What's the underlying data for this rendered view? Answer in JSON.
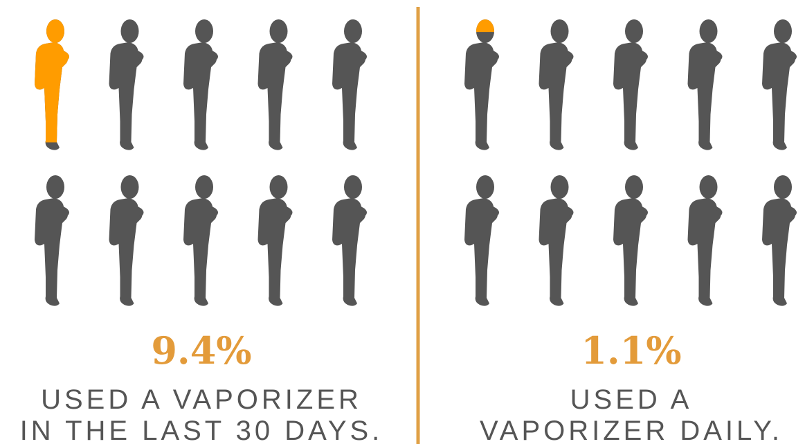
{
  "chart_data": [
    {
      "type": "pictogram",
      "values": [
        9.4
      ],
      "value_labels": [
        "9.4%"
      ],
      "caption": [
        "USED A VAPORIZER",
        "IN THE LAST 30 DAYS."
      ],
      "color": "#ff9c00",
      "base_color": "#555555"
    },
    {
      "type": "pictogram",
      "values": [
        1.1
      ],
      "value_labels": [
        "1.1%"
      ],
      "caption": [
        "USED A",
        "VAPORIZER DAILY."
      ],
      "color": "#ff9c00",
      "base_color": "#555555"
    }
  ]
}
